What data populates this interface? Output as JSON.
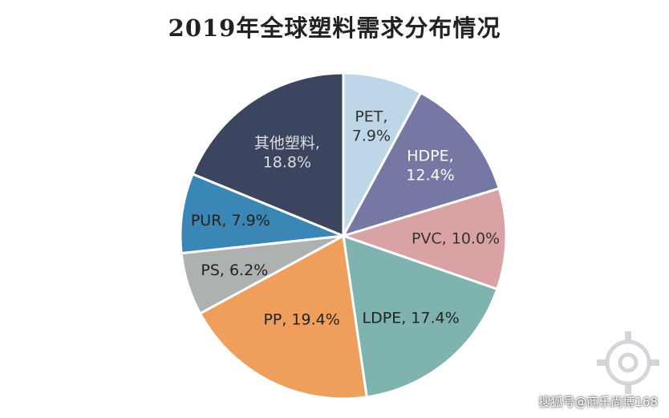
{
  "chart_data": {
    "type": "pie",
    "title": "2019年全球塑料需求分布情况",
    "unit": "%",
    "slices": [
      {
        "name": "PET",
        "value": 7.9,
        "label": "PET,\n7.9%",
        "color": "#bdd7e8",
        "text_color": "#333333"
      },
      {
        "name": "HDPE",
        "value": 12.4,
        "label": "HDPE,\n12.4%",
        "color": "#7478a3",
        "text_color": "#ffffff"
      },
      {
        "name": "PVC",
        "value": 10.0,
        "label": "PVC, 10.0%",
        "color": "#d9a3a6",
        "text_color": "#333333"
      },
      {
        "name": "LDPE",
        "value": 17.4,
        "label": "LDPE, 17.4%",
        "color": "#7fb3b0",
        "text_color": "#222222"
      },
      {
        "name": "PP",
        "value": 19.4,
        "label": "PP, 19.4%",
        "color": "#ef9f5b",
        "text_color": "#222222"
      },
      {
        "name": "PS",
        "value": 6.2,
        "label": "PS, 6.2%",
        "color": "#adb2b0",
        "text_color": "#222222"
      },
      {
        "name": "PUR",
        "value": 7.9,
        "label": "PUR, 7.9%",
        "color": "#3a86b4",
        "text_color": "#222222"
      },
      {
        "name": "其他塑料",
        "value": 18.8,
        "label": "其他塑料,\n18.8%",
        "color": "#3c4560",
        "text_color": "#dddddd"
      }
    ],
    "legend": "none",
    "start_angle_deg": 0,
    "direction": "clockwise"
  },
  "watermark": {
    "text": "搜狐号@商乐尚博168"
  }
}
